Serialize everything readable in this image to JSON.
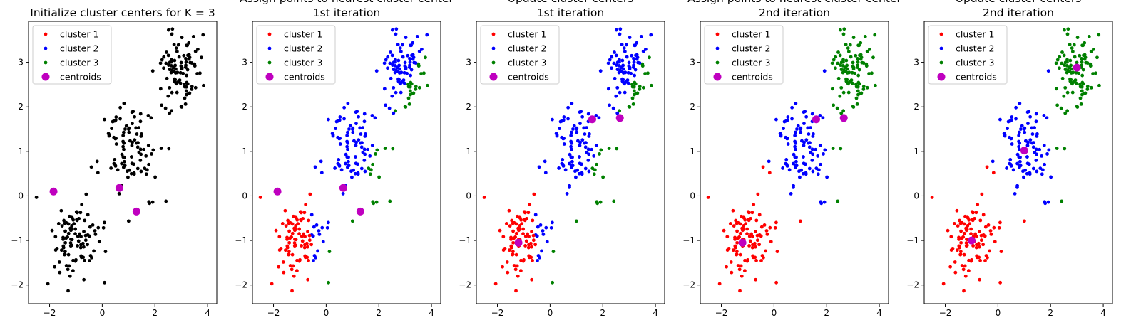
{
  "figure": {
    "panels": [
      {
        "title_lines": [
          "Initialize cluster centers for K = 3"
        ],
        "mode": "init",
        "centroids": [
          [
            -1.85,
            0.1
          ],
          [
            0.65,
            0.18
          ],
          [
            1.3,
            -0.35
          ]
        ]
      },
      {
        "title_lines": [
          "Assign points to nearest cluster center",
          "1st iteration"
        ],
        "mode": "assign1",
        "centroids": [
          [
            -1.85,
            0.1
          ],
          [
            0.65,
            0.18
          ],
          [
            1.3,
            -0.35
          ]
        ]
      },
      {
        "title_lines": [
          "Update cluster centers",
          "1st iteration"
        ],
        "mode": "assign1",
        "centroids": [
          [
            -1.2,
            -1.05
          ],
          [
            1.6,
            1.72
          ],
          [
            2.65,
            1.75
          ]
        ]
      },
      {
        "title_lines": [
          "Assign points to nearest cluster center",
          "2nd iteration"
        ],
        "mode": "assign2",
        "centroids": [
          [
            -1.2,
            -1.05
          ],
          [
            1.6,
            1.72
          ],
          [
            2.65,
            1.75
          ]
        ]
      },
      {
        "title_lines": [
          "Update cluster centers",
          "2nd iteration"
        ],
        "mode": "assign2",
        "centroids": [
          [
            -1.0,
            -1.0
          ],
          [
            1.0,
            1.02
          ],
          [
            3.0,
            2.88
          ]
        ]
      }
    ],
    "legend": {
      "position": "top-left",
      "entries": [
        {
          "label": "cluster 1",
          "color": "#ff0000",
          "marker": "point"
        },
        {
          "label": "cluster 2",
          "color": "#0000ff",
          "marker": "point"
        },
        {
          "label": "cluster 3",
          "color": "#008000",
          "marker": "point"
        },
        {
          "label": "centroids",
          "color": "#bf00bf",
          "marker": "circle"
        }
      ]
    },
    "init_point_color": "#000000"
  },
  "chart_data": {
    "type": "scatter",
    "xlim": [
      -2.8,
      4.35
    ],
    "ylim": [
      -2.42,
      3.92
    ],
    "xticks": [
      -2,
      0,
      2,
      4
    ],
    "yticks": [
      -2,
      -1,
      0,
      1,
      2,
      3
    ],
    "xtick_labels": [
      "−2",
      "0",
      "2",
      "4"
    ],
    "ytick_labels": [
      "−2",
      "−1",
      "0",
      "1",
      "2",
      "3"
    ],
    "grid": false,
    "blobs": [
      {
        "center": [
          -1,
          -1
        ],
        "spread": 0.46,
        "n": 100
      },
      {
        "center": [
          1,
          1
        ],
        "spread": 0.55,
        "n": 100
      },
      {
        "center": [
          3,
          2.85
        ],
        "spread": 0.38,
        "n": 100
      }
    ]
  }
}
